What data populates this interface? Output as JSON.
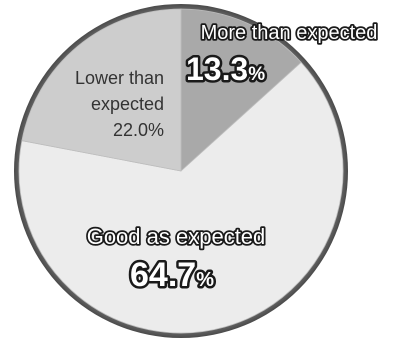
{
  "chart_data": {
    "type": "pie",
    "title": "",
    "slices": [
      {
        "label": "More than expected",
        "value": 13.3,
        "display": "13.3",
        "unit": "%",
        "color": "#a9a9a9"
      },
      {
        "label": "Good as expected",
        "value": 64.7,
        "display": "64.7",
        "unit": "%",
        "color": "#ececec"
      },
      {
        "label": "Lower than expected",
        "label_lines": [
          "Lower than",
          "expected"
        ],
        "value": 22.0,
        "display": "22.0%",
        "unit": "%",
        "color": "#cdcdcd"
      }
    ],
    "start_angle_deg": 0,
    "direction": "clockwise",
    "legend": "none"
  }
}
